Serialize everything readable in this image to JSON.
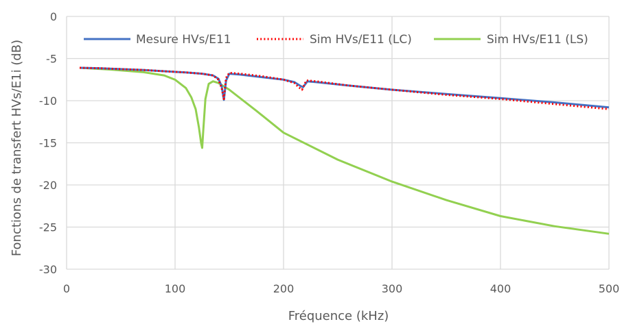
{
  "chart_data": {
    "type": "line",
    "title": "",
    "xlabel": "Fréquence (kHz)",
    "ylabel": "Fonctions de transfert HVs/E1i (dB)",
    "xlim": [
      0,
      500
    ],
    "ylim": [
      -30,
      0
    ],
    "xticks": [
      0,
      100,
      200,
      300,
      400,
      500
    ],
    "yticks": [
      0,
      -5,
      -10,
      -15,
      -20,
      -25,
      -30
    ],
    "xtick_labels": [
      "0",
      "100",
      "200",
      "300",
      "400",
      "500"
    ],
    "ytick_labels": [
      "0",
      "-5",
      "-10",
      "-15",
      "-20",
      "-25",
      "-30"
    ],
    "grid": true,
    "legend_position": "top",
    "series": [
      {
        "name": "Mesure HVs/E11",
        "color": "#4472C4",
        "style": "solid",
        "x": [
          12,
          30,
          50,
          70,
          90,
          110,
          125,
          135,
          140,
          143,
          145,
          147,
          150,
          160,
          180,
          200,
          210,
          215,
          218,
          222,
          230,
          260,
          300,
          350,
          400,
          450,
          500
        ],
        "y": [
          -6.1,
          -6.15,
          -6.25,
          -6.35,
          -6.5,
          -6.65,
          -6.8,
          -7.0,
          -7.4,
          -8.3,
          -9.9,
          -7.6,
          -6.8,
          -6.9,
          -7.2,
          -7.5,
          -7.8,
          -8.2,
          -8.4,
          -7.7,
          -7.8,
          -8.2,
          -8.7,
          -9.2,
          -9.7,
          -10.2,
          -10.8
        ]
      },
      {
        "name": "Sim HVs/E11 (LC)",
        "color": "#FF0000",
        "style": "dotted",
        "x": [
          12,
          30,
          50,
          70,
          90,
          110,
          125,
          135,
          140,
          143,
          145,
          147,
          150,
          160,
          180,
          200,
          210,
          214,
          217,
          221,
          230,
          260,
          300,
          350,
          400,
          450,
          500
        ],
        "y": [
          -6.1,
          -6.15,
          -6.25,
          -6.35,
          -6.5,
          -6.65,
          -6.8,
          -7.0,
          -7.5,
          -8.5,
          -9.8,
          -7.3,
          -6.7,
          -6.8,
          -7.1,
          -7.5,
          -7.9,
          -8.4,
          -8.7,
          -7.6,
          -7.7,
          -8.2,
          -8.7,
          -9.3,
          -9.8,
          -10.4,
          -11.0
        ]
      },
      {
        "name": "Sim HVs/E11 (LS)",
        "color": "#92D050",
        "style": "solid",
        "x": [
          12,
          40,
          70,
          90,
          100,
          110,
          115,
          119,
          122,
          124,
          125,
          126,
          128,
          131,
          135,
          140,
          150,
          175,
          200,
          250,
          300,
          350,
          400,
          450,
          500
        ],
        "y": [
          -6.1,
          -6.3,
          -6.6,
          -7.0,
          -7.5,
          -8.5,
          -9.6,
          -11.0,
          -13.2,
          -15.0,
          -15.6,
          -13.5,
          -9.8,
          -8.0,
          -7.7,
          -7.9,
          -8.7,
          -11.2,
          -13.8,
          -17.0,
          -19.6,
          -21.8,
          -23.7,
          -24.9,
          -25.8
        ]
      }
    ]
  }
}
